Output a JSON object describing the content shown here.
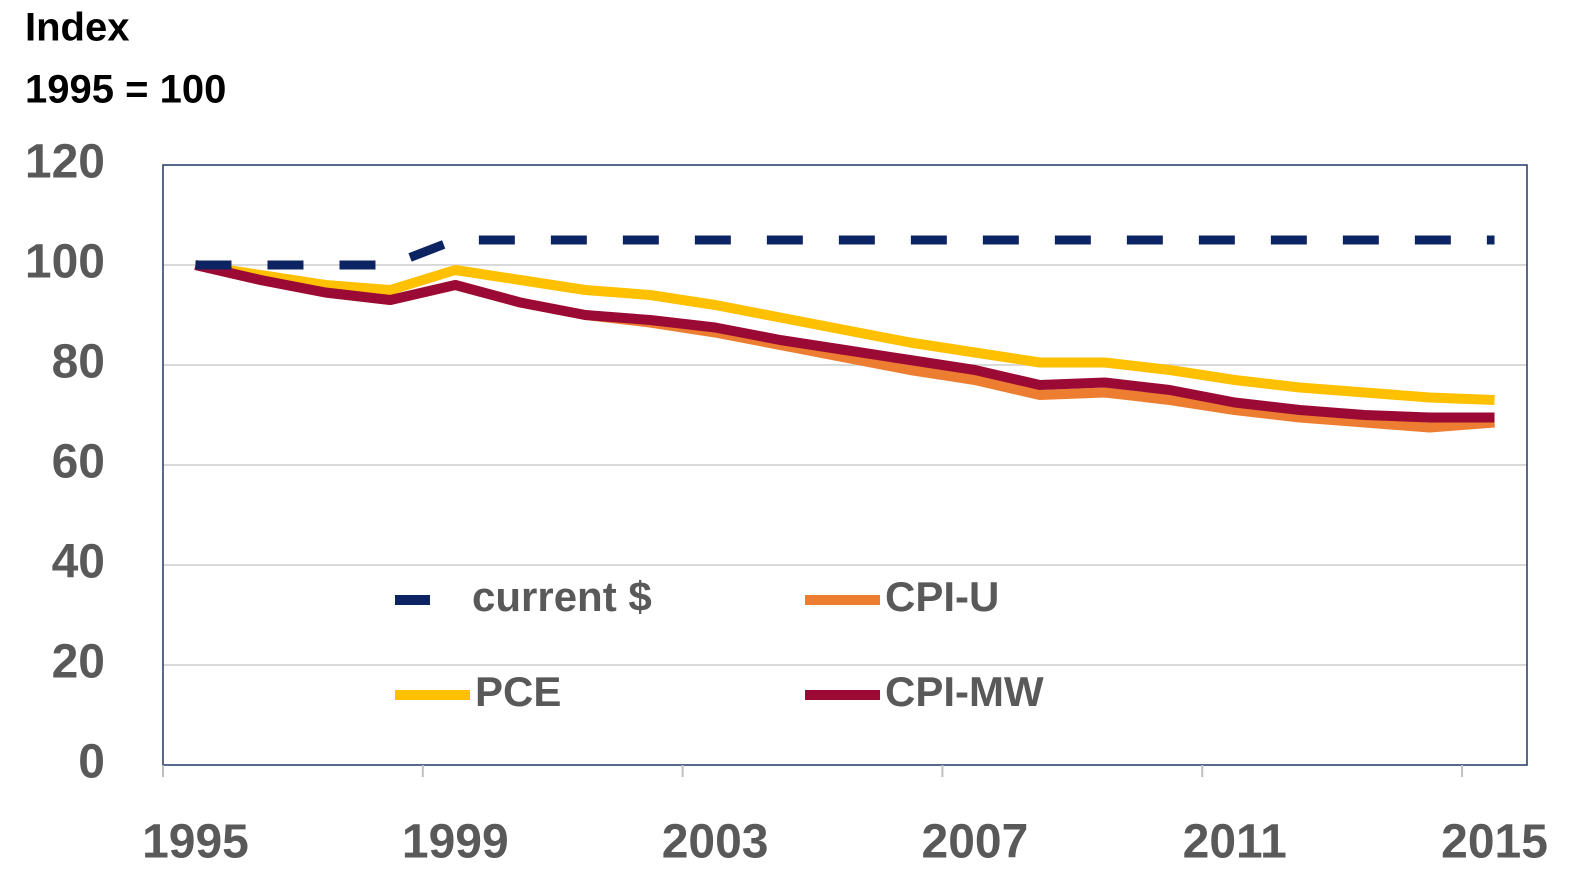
{
  "chart_data": {
    "type": "line",
    "y_label_lines": [
      "Index",
      "1995  = 100"
    ],
    "categories": [
      "1995",
      null,
      null,
      null,
      "1999",
      null,
      null,
      null,
      "2003",
      null,
      null,
      null,
      "2007",
      null,
      null,
      null,
      "2011",
      null,
      null,
      null,
      "2015"
    ],
    "series": [
      {
        "name": "PCE",
        "color": "#ffc000",
        "values": [
          100,
          98,
          96,
          95,
          99,
          97,
          95,
          94,
          92,
          89.5,
          87,
          84.5,
          82.5,
          80.5,
          80.5,
          79,
          77,
          75.5,
          74.5,
          73.5,
          73
        ]
      },
      {
        "name": "CPI-U",
        "color": "#ed7d31",
        "values": [
          100,
          97,
          94.5,
          93,
          96,
          92.5,
          90,
          88.5,
          86.5,
          84,
          81.5,
          79,
          77,
          74,
          74.5,
          73,
          71,
          69.5,
          68.5,
          67.5,
          68.5
        ]
      },
      {
        "name": "CPI-MW",
        "color": "#9b0a35",
        "values": [
          100,
          97,
          94.5,
          93,
          96,
          92.5,
          90,
          89,
          87.5,
          85,
          83,
          81,
          79,
          76,
          76.5,
          75,
          72.5,
          71,
          70,
          69.5,
          69.5
        ]
      },
      {
        "name": "current $",
        "color": "#0c2461",
        "dashed": true,
        "values": [
          100,
          100,
          100,
          100,
          105,
          105,
          105,
          105,
          105,
          105,
          105,
          105,
          105,
          105,
          105,
          105,
          105,
          105,
          105,
          105,
          105
        ]
      }
    ],
    "ylim": [
      0,
      120
    ],
    "yticks": [
      0,
      20,
      40,
      60,
      80,
      100,
      120
    ],
    "grid": true
  }
}
